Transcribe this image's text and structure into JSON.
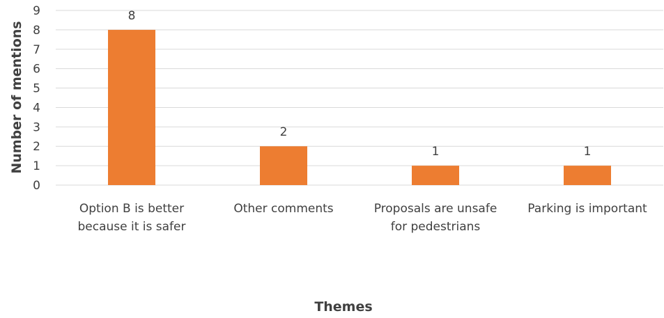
{
  "chart_data": {
    "type": "bar",
    "categories": [
      [
        "Option B is better",
        "because it is safer"
      ],
      [
        "Other comments"
      ],
      [
        "Proposals are unsafe",
        "for pedestrians"
      ],
      [
        "Parking is important"
      ]
    ],
    "values": [
      8,
      2,
      1,
      1
    ],
    "data_labels": [
      "8",
      "2",
      "1",
      "1"
    ],
    "title": "",
    "xlabel": "Themes",
    "ylabel": "Number of mentions",
    "ylim": [
      0,
      9
    ],
    "yticks": [
      "0",
      "1",
      "2",
      "3",
      "4",
      "5",
      "6",
      "7",
      "8",
      "9"
    ],
    "grid": true,
    "legend": "none"
  },
  "colors": {
    "bar": "#ED7D31",
    "grid": "#D9D9D9",
    "text": "#404040"
  }
}
